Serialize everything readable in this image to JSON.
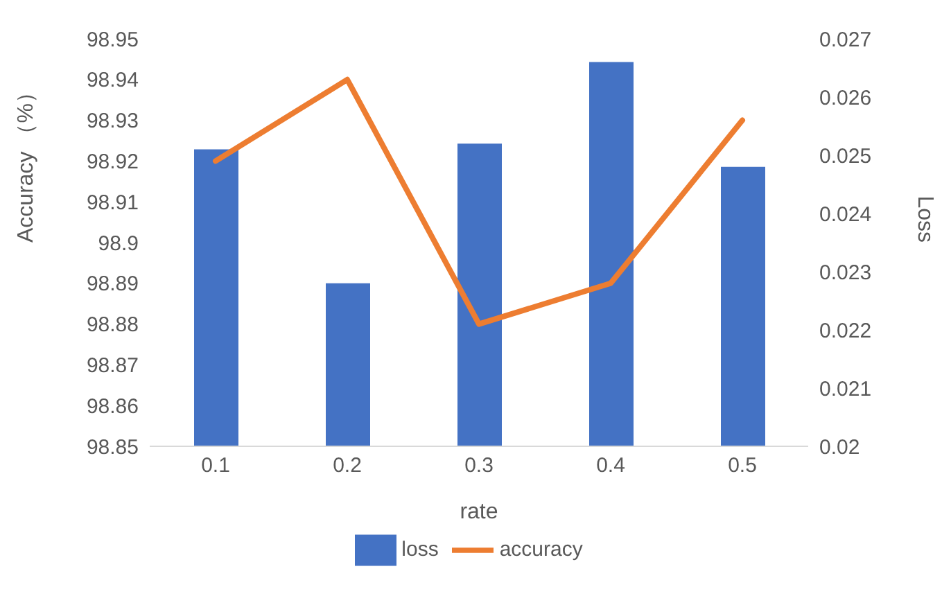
{
  "chart_data": {
    "type": "bar",
    "categories": [
      "0.1",
      "0.2",
      "0.3",
      "0.4",
      "0.5"
    ],
    "xlabel": "rate",
    "ylabel": "Accuracy （%）",
    "y2label": "Loss",
    "series": [
      {
        "name": "loss",
        "axis": "y2",
        "color": "#4472c4",
        "values": [
          0.0251,
          0.0228,
          0.0252,
          0.0266,
          0.0248
        ]
      },
      {
        "name": "accuracy",
        "type": "line",
        "color": "#ed7d31",
        "values": [
          98.92,
          98.94,
          98.88,
          98.89,
          98.93
        ]
      }
    ],
    "ylim": [
      98.85,
      98.95
    ],
    "yticks": [
      98.85,
      98.86,
      98.87,
      98.88,
      98.89,
      98.9,
      98.91,
      98.92,
      98.93,
      98.94,
      98.95
    ],
    "y2lim": [
      0.02,
      0.027
    ],
    "y2ticks": [
      0.02,
      0.021,
      0.022,
      0.023,
      0.024,
      0.025,
      0.026,
      0.027
    ],
    "grid": false,
    "legend": "bottom",
    "marker": "none",
    "line_style": "solid"
  }
}
